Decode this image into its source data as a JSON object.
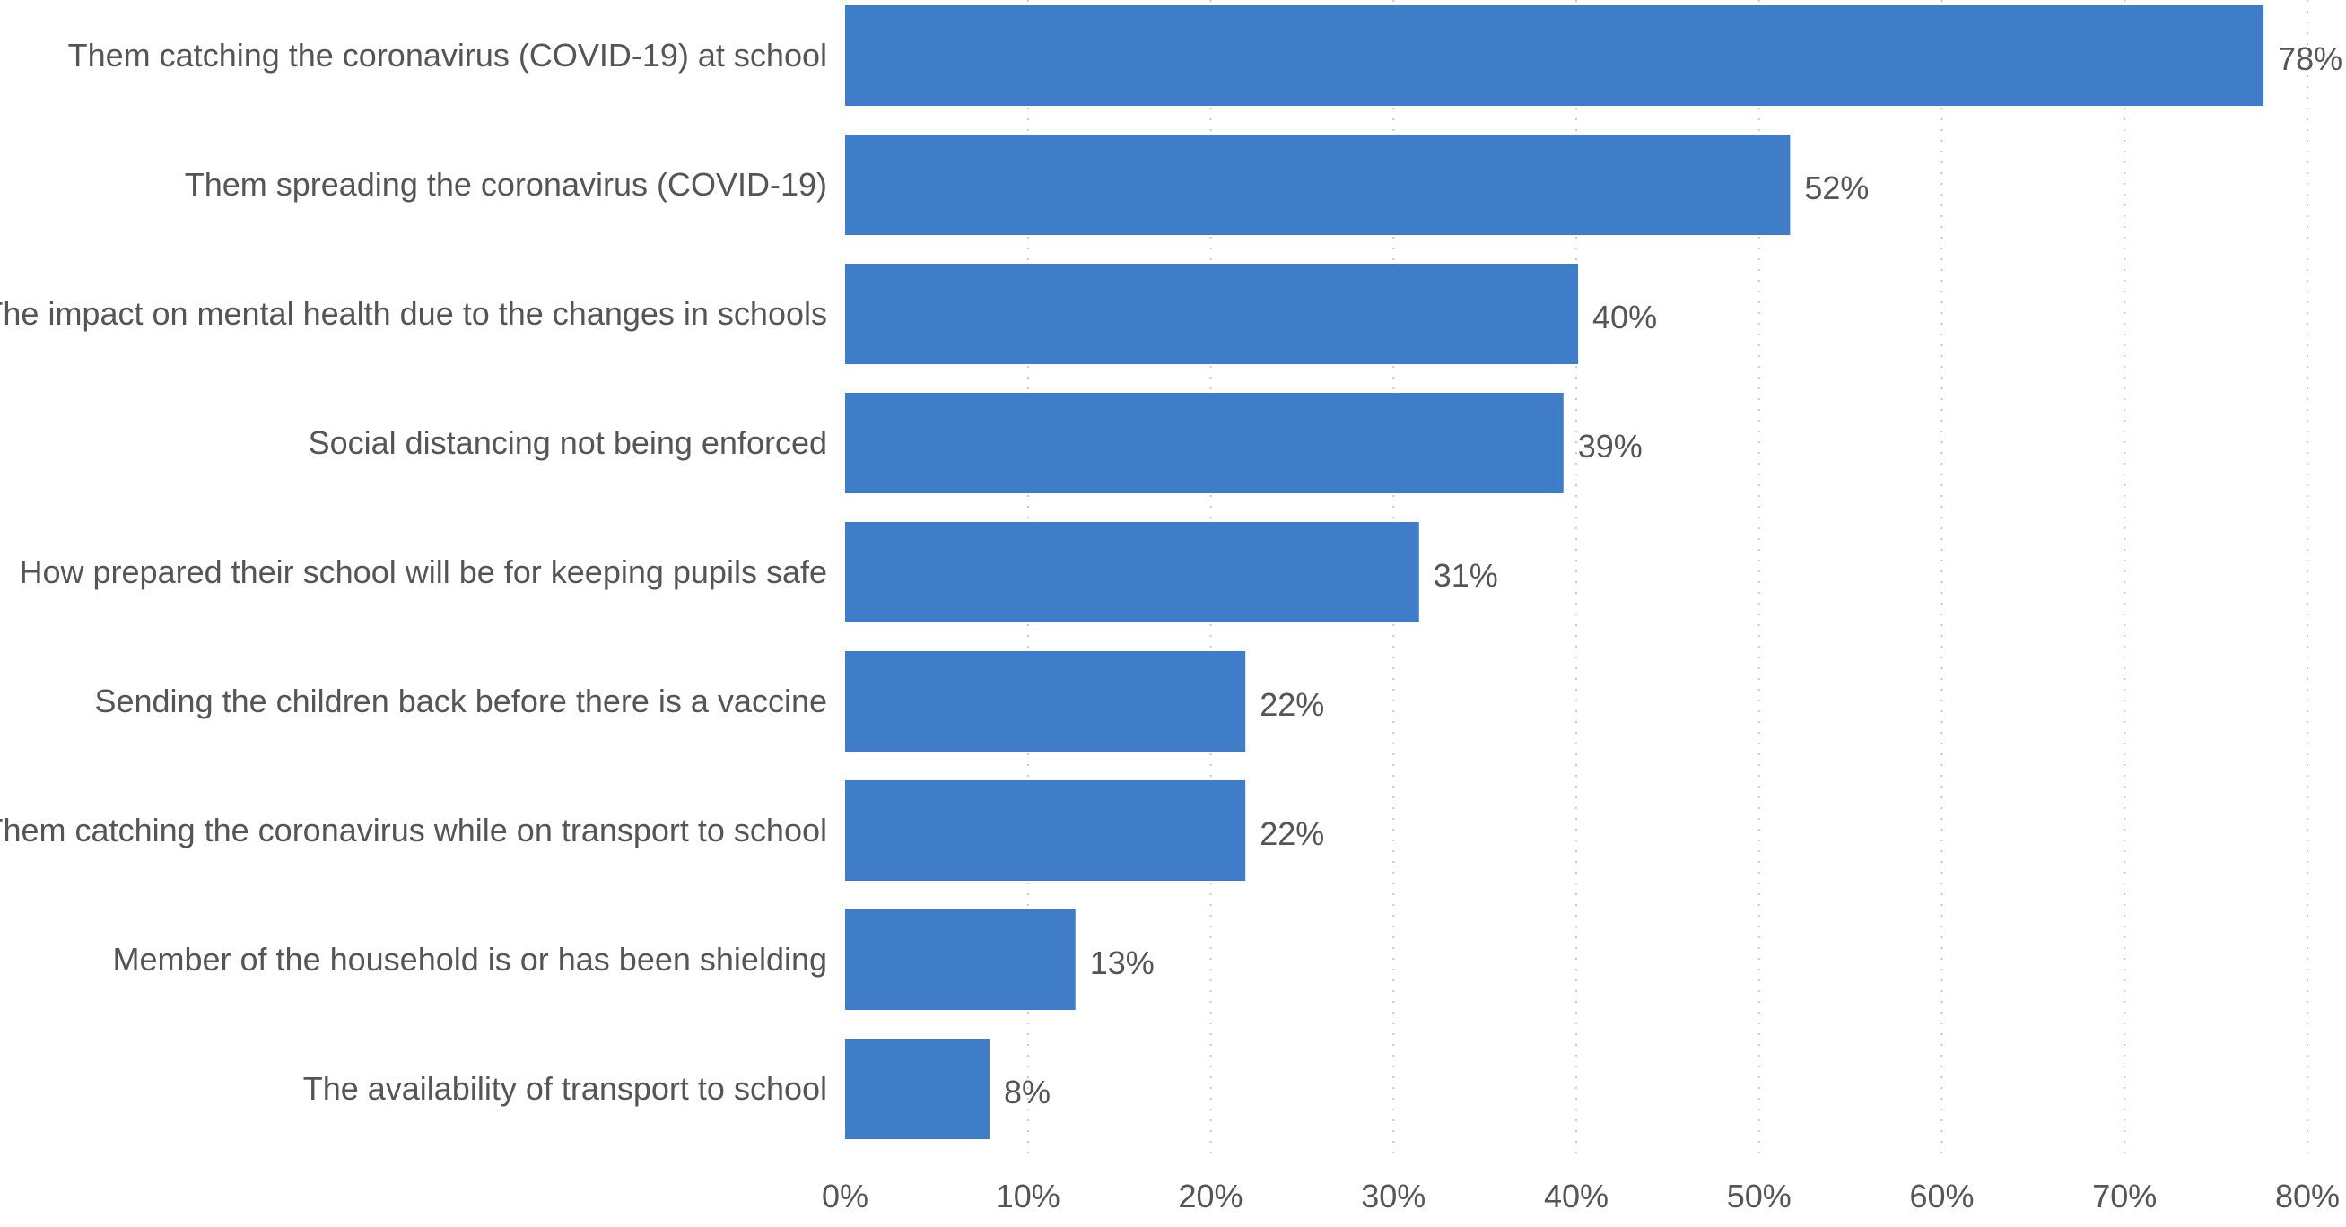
{
  "chart_data": {
    "type": "bar",
    "orientation": "horizontal",
    "title": "",
    "xlabel": "",
    "ylabel": "",
    "categories": [
      "Them catching the coronavirus (COVID-19) at school",
      "Them spreading the coronavirus (COVID-19)",
      "The impact on mental health due to the changes in schools",
      "Social distancing not being enforced",
      "How prepared their school will be for keeping pupils safe",
      "Sending the children back before there is a vaccine",
      "Them catching the coronavirus while on transport to school",
      "Member of the household is or has been shielding",
      "The availability of transport to school"
    ],
    "values": [
      77.6,
      51.7,
      40.1,
      39.3,
      31.4,
      21.9,
      21.9,
      12.6,
      7.9
    ],
    "value_labels": [
      "78%",
      "52%",
      "40%",
      "39%",
      "31%",
      "22%",
      "22%",
      "13%",
      "8%"
    ],
    "xlim": [
      0,
      80
    ],
    "x_ticks": [
      0,
      10,
      20,
      30,
      40,
      50,
      60,
      70,
      80
    ],
    "x_tick_labels": [
      "0%",
      "10%",
      "20%",
      "30%",
      "40%",
      "50%",
      "60%",
      "70%",
      "80%"
    ],
    "grid": "vertical-dotted",
    "legend": "none",
    "bar_color": "#3f7dc9"
  }
}
